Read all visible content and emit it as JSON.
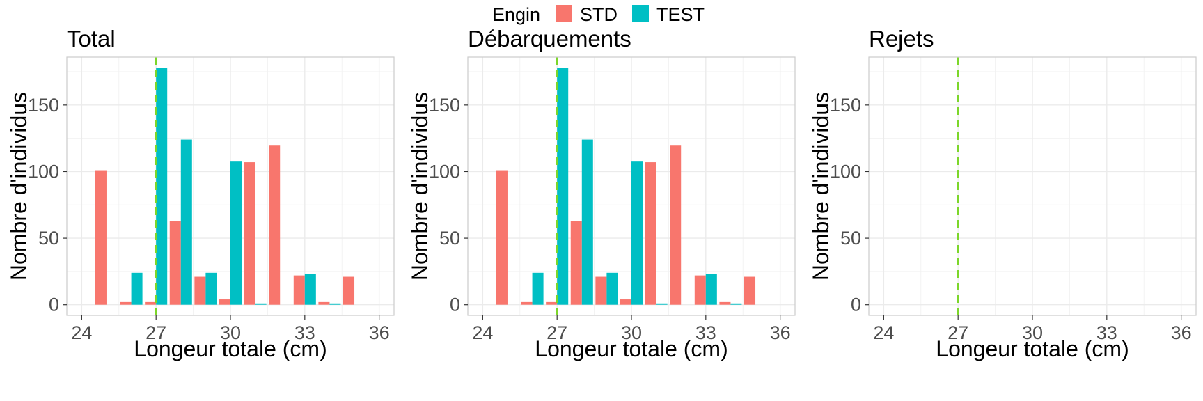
{
  "legend": {
    "title": "Engin",
    "items": [
      {
        "label": "STD",
        "color": "#F8766D"
      },
      {
        "label": "TEST",
        "color": "#00BFC4"
      }
    ]
  },
  "chart_data": [
    {
      "type": "bar",
      "title": "Total",
      "xlabel": "Longeur totale (cm)",
      "ylabel": "Nombre d'individus",
      "xlim": [
        23.4,
        36.6
      ],
      "ylim": [
        -8,
        186
      ],
      "xticks": [
        24,
        27,
        30,
        33,
        36
      ],
      "yticks": [
        0,
        50,
        100,
        150
      ],
      "grid": true,
      "reference_line": {
        "x": 27,
        "color": "#7CD62A",
        "style": "dashed"
      },
      "series": [
        {
          "name": "STD",
          "color": "#F8766D",
          "x": [
            25,
            26,
            27,
            28,
            29,
            30,
            31,
            32,
            33,
            34,
            35
          ],
          "values": [
            101,
            2,
            2,
            63,
            21,
            4,
            107,
            120,
            22,
            2,
            21
          ]
        },
        {
          "name": "TEST",
          "color": "#00BFC4",
          "x": [
            26,
            27,
            28,
            29,
            30,
            31,
            33,
            34
          ],
          "values": [
            24,
            178,
            124,
            24,
            108,
            1,
            23,
            1
          ]
        }
      ]
    },
    {
      "type": "bar",
      "title": "Débarquements",
      "xlabel": "Longeur totale (cm)",
      "ylabel": "Nombre d'individus",
      "xlim": [
        23.4,
        36.6
      ],
      "ylim": [
        -8,
        186
      ],
      "xticks": [
        24,
        27,
        30,
        33,
        36
      ],
      "yticks": [
        0,
        50,
        100,
        150
      ],
      "grid": true,
      "reference_line": {
        "x": 27,
        "color": "#7CD62A",
        "style": "dashed"
      },
      "series": [
        {
          "name": "STD",
          "color": "#F8766D",
          "x": [
            25,
            26,
            27,
            28,
            29,
            30,
            31,
            32,
            33,
            34,
            35
          ],
          "values": [
            101,
            2,
            2,
            63,
            21,
            4,
            107,
            120,
            22,
            2,
            21
          ]
        },
        {
          "name": "TEST",
          "color": "#00BFC4",
          "x": [
            26,
            27,
            28,
            29,
            30,
            31,
            33,
            34
          ],
          "values": [
            24,
            178,
            124,
            24,
            108,
            1,
            23,
            1
          ]
        }
      ]
    },
    {
      "type": "bar",
      "title": "Rejets",
      "xlabel": "Longeur totale (cm)",
      "ylabel": "Nombre d'individus",
      "xlim": [
        23.4,
        36.6
      ],
      "ylim": [
        -8,
        186
      ],
      "xticks": [
        24,
        27,
        30,
        33,
        36
      ],
      "yticks": [
        0,
        50,
        100,
        150
      ],
      "grid": true,
      "reference_line": {
        "x": 27,
        "color": "#7CD62A",
        "style": "dashed"
      },
      "series": []
    }
  ]
}
